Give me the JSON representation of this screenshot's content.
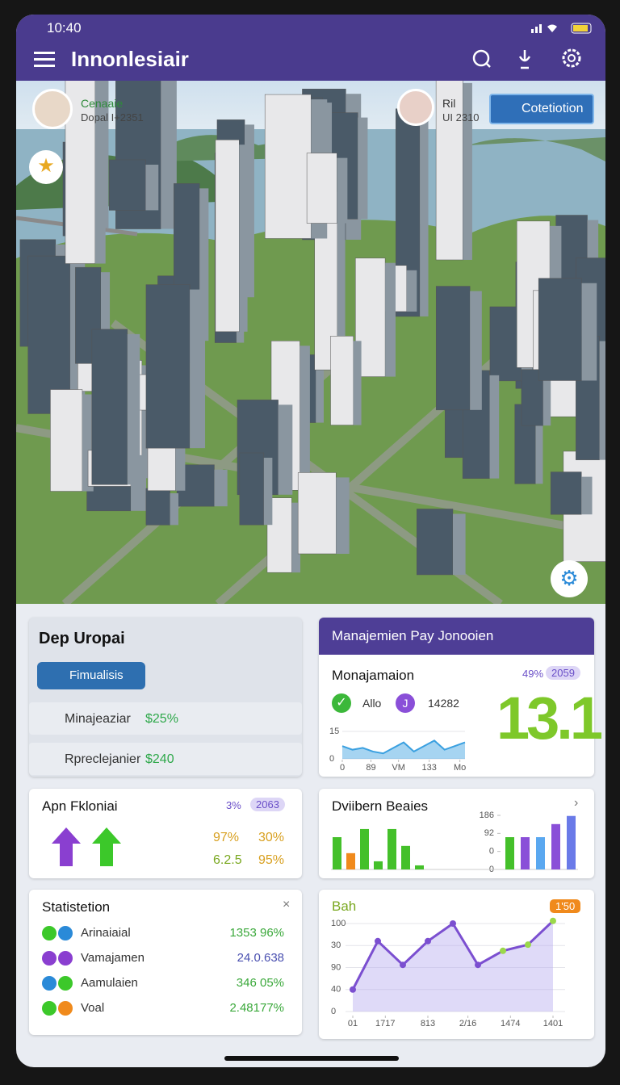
{
  "status": {
    "time": "10:40"
  },
  "header": {
    "title": "Innonlesiair"
  },
  "map": {
    "players": [
      {
        "name": "Cenaaie",
        "info": "Dopal I+2351"
      },
      {
        "name": "Ril",
        "info": "UI 2310"
      }
    ],
    "button": "Cotetiotion"
  },
  "panel1": {
    "title": "Dep Uropai",
    "button": "Fimualisis",
    "rows": [
      {
        "label": "Minajeaziar",
        "value": "$25%"
      },
      {
        "label": "Rpreclejanier",
        "value": "$240"
      }
    ]
  },
  "panel2": {
    "header": "Manajemien Pay Jonooien",
    "title": "Monajamaion",
    "stat": "49%",
    "badge": "2059",
    "items": [
      "Allo",
      "14282"
    ],
    "icon": "J",
    "big": "13.1",
    "chart": {
      "type": "area",
      "color": "#3aa0e0",
      "x": [
        0,
        1,
        2,
        3,
        4,
        5,
        6,
        7,
        8,
        9,
        10,
        11,
        12
      ],
      "values": [
        7,
        5,
        6,
        4,
        3,
        6,
        9,
        4,
        7,
        10,
        5,
        7,
        9
      ],
      "xlim": [
        0,
        12
      ],
      "ylim": [
        0,
        15
      ],
      "yticks": [
        15,
        0
      ],
      "xticks": [
        0,
        {
          "value": 2.8,
          "label": "89"
        },
        {
          "value": 5.5,
          "label": "VM"
        },
        {
          "value": 8.5,
          "label": "133"
        },
        {
          "value": 11.5,
          "label": "Mo"
        }
      ]
    }
  },
  "panel3": {
    "title": "Apn Fkloniai",
    "stat": "3%",
    "badge": "2063",
    "values": [
      "97%",
      "30%",
      "6.2.5",
      "95%"
    ]
  },
  "panel4": {
    "title": "Dviibern Beaies",
    "chart": {
      "type": "bar",
      "values": [
        111,
        56,
        139,
        28,
        139,
        81,
        14,
        111,
        111,
        111,
        156,
        184
      ],
      "colors": [
        "#44c02a",
        "#f08a1c",
        "#44c02a",
        "#44c02a",
        "#44c02a",
        "#44c02a",
        "#44c02a",
        "#44c02a",
        "#8a4fd8",
        "#5aa8f0",
        "#8a4fd8",
        "#6a7ae8"
      ],
      "ylim": [
        0,
        186
      ],
      "yticks": [
        186,
        {
          "value": 124,
          "label": "92"
        },
        {
          "value": 62,
          "label": "0"
        },
        0
      ]
    }
  },
  "panel5": {
    "title": "Statistetion",
    "rows": [
      {
        "label": "Arinaiaial",
        "value": "1353 96%"
      },
      {
        "label": "Vamajamen",
        "value": "24.0.638"
      },
      {
        "label": "Aamulaien",
        "value": "346 05%"
      },
      {
        "label": "Voal",
        "value": "2.48177%"
      }
    ]
  },
  "panel6": {
    "title": "Bah",
    "badge": "1'50",
    "chart": {
      "type": "line",
      "color": "#7b4fd0",
      "x": [
        0,
        1,
        2,
        3,
        4,
        5,
        6,
        7,
        8
      ],
      "values": [
        25,
        80,
        53,
        80,
        100,
        53,
        69,
        76,
        103
      ],
      "point_colors": [
        "#7b4fd0",
        "#7b4fd0",
        "#7b4fd0",
        "#7b4fd0",
        "#7b4fd0",
        "#7b4fd0",
        "#9bd84a",
        "#9bd84a",
        "#9bd84a"
      ],
      "xlim": [
        0,
        8
      ],
      "ylim": [
        0,
        100
      ],
      "yticks": [
        100,
        {
          "value": 75,
          "label": "30"
        },
        {
          "value": 50,
          "label": "90"
        },
        {
          "value": 25,
          "label": "40"
        },
        0
      ],
      "xticks": [
        {
          "value": 0,
          "label": "01"
        },
        {
          "value": 1.3,
          "label": "1717"
        },
        {
          "value": 3,
          "label": "813"
        },
        {
          "value": 4.6,
          "label": "2/16"
        },
        {
          "value": 6.3,
          "label": "1474"
        },
        {
          "value": 8,
          "label": "1401"
        }
      ]
    }
  }
}
